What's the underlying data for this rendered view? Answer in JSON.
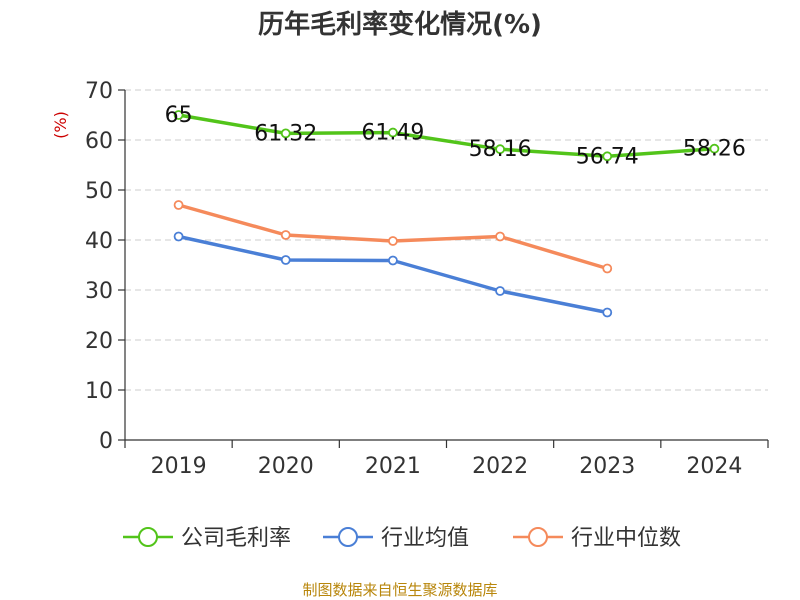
{
  "chart_data": {
    "type": "line",
    "title": "历年毛利率变化情况(%)",
    "xlabel": "",
    "ylabel": "(%)",
    "categories": [
      "2019",
      "2020",
      "2021",
      "2022",
      "2023",
      "2024"
    ],
    "ylim": [
      0,
      70
    ],
    "yticks": [
      0,
      10,
      20,
      30,
      40,
      50,
      60,
      70
    ],
    "grid": true,
    "legend_position": "bottom",
    "series": [
      {
        "name": "公司毛利率",
        "color": "#52c41a",
        "values": [
          65,
          61.32,
          61.49,
          58.16,
          56.74,
          58.26
        ],
        "labels": [
          "65",
          "61.32",
          "61.49",
          "58.16",
          "56.74",
          "58.26"
        ]
      },
      {
        "name": "行业均值",
        "color": "#4a7fd6",
        "values": [
          40.7,
          36.0,
          35.9,
          29.8,
          25.5,
          null
        ]
      },
      {
        "name": "行业中位数",
        "color": "#f58a5b",
        "values": [
          47.0,
          41.0,
          39.8,
          40.7,
          34.3,
          null
        ]
      }
    ]
  },
  "source": "制图数据来自恒生聚源数据库"
}
